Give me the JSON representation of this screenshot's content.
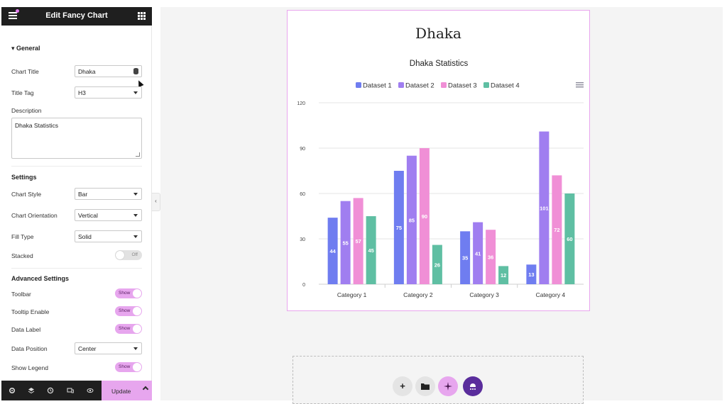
{
  "panel": {
    "title": "Edit Fancy Chart",
    "general": {
      "heading": "General",
      "chart_title_label": "Chart Title",
      "chart_title_value": "Dhaka",
      "title_tag_label": "Title Tag",
      "title_tag_value": "H3",
      "description_label": "Description",
      "description_value": "Dhaka Statistics"
    },
    "settings": {
      "heading": "Settings",
      "chart_style_label": "Chart Style",
      "chart_style_value": "Bar",
      "orientation_label": "Chart Orientation",
      "orientation_value": "Vertical",
      "fill_type_label": "Fill Type",
      "fill_type_value": "Solid",
      "stacked_label": "Stacked",
      "stacked_state": "Off"
    },
    "advanced": {
      "heading": "Advanced Settings",
      "toolbar_label": "Toolbar",
      "toolbar_state": "Show",
      "tooltip_label": "Tooltip Enable",
      "tooltip_state": "Show",
      "data_label_label": "Data Label",
      "data_label_state": "Show",
      "data_position_label": "Data Position",
      "data_position_value": "Center",
      "show_legend_label": "Show Legend",
      "show_legend_state": "Show"
    },
    "footer": {
      "update_label": "Update"
    },
    "icons": [
      "menu-icon",
      "grid-icon",
      "database-icon",
      "settings-icon",
      "layers-icon",
      "history-icon",
      "responsive-icon",
      "eye-icon",
      "chevron-up-icon"
    ]
  },
  "canvas": {
    "heading": "Dhaka",
    "add_buttons": [
      "+"
    ],
    "icons": [
      "plus-icon",
      "folder-icon",
      "sparkle-icon",
      "elementor-logo-icon"
    ]
  },
  "chart_data": {
    "type": "bar",
    "title": "Dhaka Statistics",
    "categories": [
      "Category 1",
      "Category 2",
      "Category 3",
      "Category 4"
    ],
    "series": [
      {
        "name": "Dataset 1",
        "color": "#6f7df0",
        "values": [
          44,
          75,
          35,
          13
        ]
      },
      {
        "name": "Dataset 2",
        "color": "#a07ef0",
        "values": [
          55,
          85,
          41,
          101
        ]
      },
      {
        "name": "Dataset 3",
        "color": "#f08fd6",
        "values": [
          57,
          90,
          36,
          72
        ]
      },
      {
        "name": "Dataset 4",
        "color": "#5fbfa3",
        "values": [
          45,
          26,
          12,
          60
        ]
      }
    ],
    "yticks": [
      "0",
      "30",
      "60",
      "90",
      "120"
    ],
    "ylim": [
      0,
      120
    ],
    "grid": true,
    "legend": "top",
    "data_labels": true
  }
}
